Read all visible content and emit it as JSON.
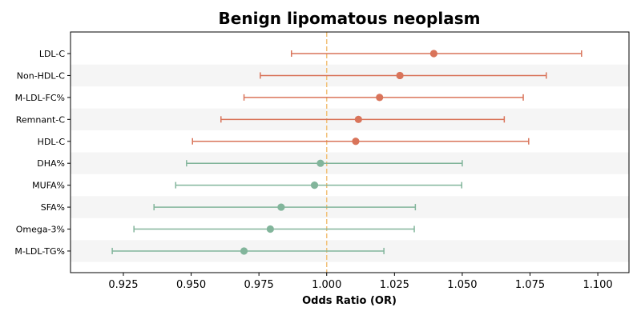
{
  "chart_data": {
    "type": "forest",
    "title": "Benign lipomatous neoplasm",
    "xlabel": "Odds Ratio (OR)",
    "xlim": [
      0.9055,
      1.1115
    ],
    "xticks": [
      0.925,
      0.95,
      0.975,
      1.0,
      1.025,
      1.05,
      1.075,
      1.1
    ],
    "xtick_labels": [
      "0.925",
      "0.950",
      "0.975",
      "1.000",
      "1.025",
      "1.050",
      "1.075",
      "1.100"
    ],
    "reference_line": 1.0,
    "reference_color": "#f2c27a",
    "colors": {
      "positive": "#d9745a",
      "negative": "#82b59b",
      "stripe": "#f5f5f5"
    },
    "grid": false,
    "items": [
      {
        "label": "LDL-C",
        "or": 1.0395,
        "lower": 0.987,
        "upper": 1.094,
        "group": "positive"
      },
      {
        "label": "Non-HDL-C",
        "or": 1.027,
        "lower": 0.9755,
        "upper": 1.081,
        "group": "positive"
      },
      {
        "label": "M-LDL-FC%",
        "or": 1.0195,
        "lower": 0.9695,
        "upper": 1.0725,
        "group": "positive"
      },
      {
        "label": "Remnant-C",
        "or": 1.0117,
        "lower": 0.961,
        "upper": 1.0655,
        "group": "positive"
      },
      {
        "label": "HDL-C",
        "or": 1.0107,
        "lower": 0.9505,
        "upper": 1.0745,
        "group": "positive"
      },
      {
        "label": "DHA%",
        "or": 0.9977,
        "lower": 0.9483,
        "upper": 1.05,
        "group": "negative"
      },
      {
        "label": "MUFA%",
        "or": 0.9955,
        "lower": 0.9443,
        "upper": 1.0498,
        "group": "negative"
      },
      {
        "label": "SFA%",
        "or": 0.9832,
        "lower": 0.9363,
        "upper": 1.0327,
        "group": "negative"
      },
      {
        "label": "Omega-3%",
        "or": 0.9792,
        "lower": 0.9289,
        "upper": 1.0323,
        "group": "negative"
      },
      {
        "label": "M-LDL-TG%",
        "or": 0.9695,
        "lower": 0.9209,
        "upper": 1.0211,
        "group": "negative"
      }
    ]
  }
}
